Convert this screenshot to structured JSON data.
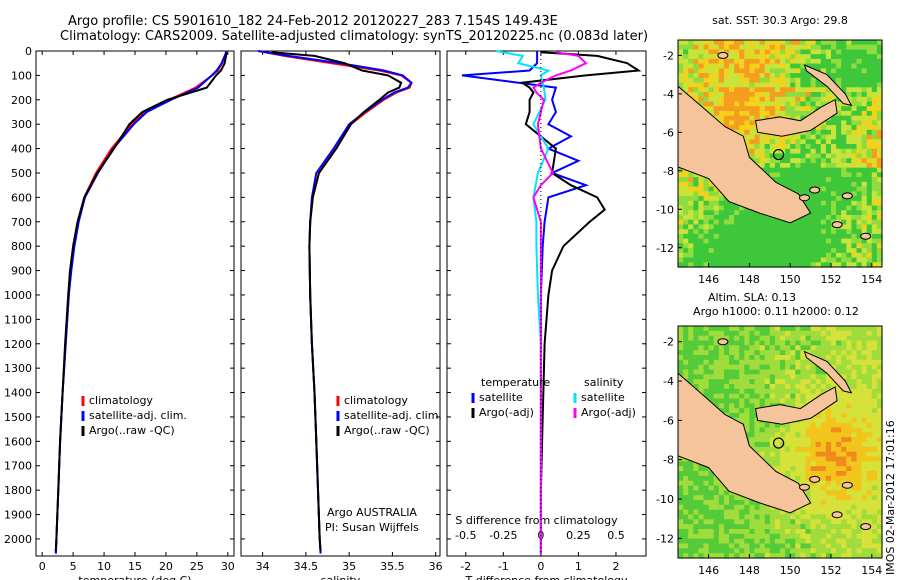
{
  "header": {
    "line1": "Argo profile: CS 5901610_182 24-Feb-2012 20120227_283 7.154S 149.43E",
    "line2": "Climatology: CARS2009. Satellite-adjusted climatology: synTS_20120225.nc (0.083d later)"
  },
  "map_top": {
    "title": "sat. SST: 30.3 Argo: 29.8",
    "x_ticks": [
      "146",
      "148",
      "150",
      "152",
      "154"
    ],
    "y_ticks": [
      "-2",
      "-4",
      "-6",
      "-8",
      "-10",
      "-12"
    ],
    "profile_marker": {
      "lon": 149.43,
      "lat": -7.154
    }
  },
  "map_bottom": {
    "title1": "Altim. SLA: 0.13",
    "title2": "Argo h1000: 0.11 h2000: 0.12",
    "x_ticks": [
      "146",
      "148",
      "150",
      "152",
      "154"
    ],
    "y_ticks": [
      "-2",
      "-4",
      "-6",
      "-8",
      "-10",
      "-12"
    ],
    "profile_marker": {
      "lon": 149.43,
      "lat": -7.154
    }
  },
  "footer": {
    "stamp": "IMOS 02-Mar-2012 17:01:16"
  },
  "colors": {
    "climatology": "#ff0000",
    "satellite": "#0000ff",
    "argo": "#000000",
    "sal_sat": "#00e5ff",
    "sal_argo": "#ff00ff",
    "land": "#f5c49b"
  },
  "chart_data": [
    {
      "type": "line",
      "name": "temperature",
      "xlabel": "temperature (deg C)",
      "ylabel": "",
      "xlim": [
        -1,
        31
      ],
      "ylim": [
        2070,
        0
      ],
      "x_ticks": [
        "0",
        "5",
        "10",
        "15",
        "20",
        "25",
        "30"
      ],
      "y_ticks": [
        "0",
        "100",
        "200",
        "300",
        "400",
        "500",
        "600",
        "700",
        "800",
        "900",
        "1000",
        "1100",
        "1200",
        "1300",
        "1400",
        "1500",
        "1600",
        "1700",
        "1800",
        "1900",
        "2000"
      ],
      "legend": [
        "climatology",
        "satellite-adj. clim.",
        "Argo(..raw -QC)"
      ],
      "series": [
        {
          "name": "climatology",
          "depth": [
            0,
            20,
            50,
            80,
            100,
            150,
            200,
            250,
            300,
            400,
            500,
            600,
            700,
            800,
            900,
            1000,
            1200,
            1400,
            1600,
            1800,
            2000,
            2060
          ],
          "values": [
            29.9,
            29.6,
            29.1,
            28.4,
            27.5,
            24.8,
            20.5,
            16.5,
            14.5,
            11.2,
            8.7,
            6.8,
            5.8,
            5.1,
            4.6,
            4.3,
            3.8,
            3.3,
            2.9,
            2.6,
            2.3,
            2.2
          ]
        },
        {
          "name": "satellite-adj. clim.",
          "depth": [
            0,
            20,
            50,
            80,
            100,
            150,
            200,
            250,
            300,
            400,
            500,
            600,
            700,
            800,
            900,
            1000,
            1200,
            1400,
            1600,
            1800,
            2000,
            2060
          ],
          "values": [
            29.8,
            29.5,
            29.0,
            28.2,
            27.4,
            25.2,
            20.8,
            16.9,
            14.8,
            11.5,
            9.0,
            6.9,
            5.9,
            5.2,
            4.7,
            4.3,
            3.8,
            3.3,
            2.9,
            2.6,
            2.3,
            2.2
          ]
        },
        {
          "name": "Argo(..raw -QC)",
          "depth": [
            5,
            20,
            50,
            80,
            100,
            150,
            200,
            250,
            300,
            400,
            500,
            600,
            700,
            800,
            900,
            1000,
            1200,
            1400,
            1600,
            1800,
            2000,
            2050
          ],
          "values": [
            29.8,
            29.7,
            29.5,
            28.9,
            28.1,
            26.6,
            20.2,
            16.2,
            14.1,
            11.6,
            8.9,
            6.8,
            5.7,
            5.0,
            4.5,
            4.2,
            3.7,
            3.3,
            2.9,
            2.6,
            2.3,
            2.2
          ]
        }
      ]
    },
    {
      "type": "line",
      "name": "salinity",
      "xlabel": "salinity",
      "xlim": [
        33.75,
        36.05
      ],
      "ylim": [
        2070,
        0
      ],
      "x_ticks": [
        "34",
        "34.5",
        "35",
        "35.5",
        "36"
      ],
      "legend": [
        "climatology",
        "satellite-adj. clim.",
        "Argo(..raw -QC)"
      ],
      "annotation": [
        "Argo AUSTRALIA",
        "PI: Susan Wijffels"
      ],
      "series": [
        {
          "name": "climatology",
          "depth": [
            0,
            20,
            50,
            80,
            100,
            130,
            150,
            170,
            200,
            250,
            300,
            400,
            500,
            600,
            700,
            800,
            1000,
            1200,
            1400,
            1600,
            1800,
            2000,
            2060
          ],
          "values": [
            33.95,
            34.25,
            34.8,
            35.35,
            35.6,
            35.72,
            35.7,
            35.55,
            35.4,
            35.2,
            35.02,
            34.85,
            34.65,
            34.58,
            34.55,
            34.54,
            34.55,
            34.57,
            34.6,
            34.62,
            34.64,
            34.66,
            34.67
          ]
        },
        {
          "name": "satellite-adj. clim.",
          "depth": [
            0,
            20,
            50,
            80,
            100,
            130,
            150,
            170,
            200,
            250,
            300,
            400,
            500,
            600,
            700,
            800,
            1000,
            1200,
            1400,
            1600,
            1800,
            2000,
            2060
          ],
          "values": [
            33.95,
            34.3,
            34.9,
            35.4,
            35.62,
            35.72,
            35.68,
            35.52,
            35.38,
            35.18,
            35.0,
            34.82,
            34.62,
            34.57,
            34.55,
            34.54,
            34.55,
            34.57,
            34.6,
            34.62,
            34.64,
            34.66,
            34.67
          ]
        },
        {
          "name": "Argo(..raw -QC)",
          "depth": [
            5,
            20,
            50,
            80,
            100,
            130,
            150,
            170,
            200,
            250,
            300,
            400,
            500,
            600,
            700,
            800,
            1000,
            1200,
            1400,
            1600,
            1800,
            2000,
            2050
          ],
          "values": [
            34.1,
            34.6,
            34.95,
            35.15,
            35.45,
            35.6,
            35.58,
            35.45,
            35.35,
            35.17,
            35.02,
            34.85,
            34.65,
            34.58,
            34.55,
            34.54,
            34.55,
            34.57,
            34.6,
            34.62,
            34.64,
            34.66,
            34.67
          ]
        }
      ]
    },
    {
      "type": "line",
      "name": "differences",
      "xlabel_bottom": "T difference from climatology",
      "xlabel_top": "S difference from climatology",
      "xlim": [
        -2.5,
        2.8
      ],
      "ylim": [
        2070,
        0
      ],
      "x_ticks": [
        "-2",
        "-1",
        "0",
        "1",
        "2"
      ],
      "x_ticks_top": [
        "-0.5",
        "-0.25",
        "0",
        "0.25",
        "0.5"
      ],
      "legend_temperature": [
        "temperature",
        "satellite",
        "Argo(-adj)"
      ],
      "legend_salinity": [
        "salinity",
        "satellite",
        "Argo(-adj)"
      ],
      "series": [
        {
          "name": "temperature satellite",
          "depth": [
            0,
            50,
            80,
            100,
            150,
            200,
            250,
            300,
            350,
            400,
            450,
            500,
            550,
            600,
            700,
            800,
            1000,
            1200,
            1500,
            1800,
            2000,
            2060
          ],
          "values": [
            -0.1,
            -0.1,
            -0.3,
            -2.1,
            0.4,
            0.3,
            0.4,
            0.2,
            0.8,
            0.2,
            1.0,
            0.3,
            1.2,
            0.2,
            0.1,
            0.05,
            0.0,
            0.0,
            0.0,
            0.0,
            0.0,
            0.0
          ]
        },
        {
          "name": "temperature Argo(-adj)",
          "depth": [
            5,
            20,
            50,
            80,
            100,
            130,
            150,
            170,
            200,
            250,
            300,
            400,
            500,
            550,
            600,
            650,
            700,
            800,
            900,
            1000,
            1200,
            1500,
            1800,
            2000,
            2060
          ],
          "values": [
            0.0,
            1.5,
            2.3,
            2.6,
            1.2,
            -0.5,
            -0.3,
            -0.2,
            -0.3,
            -0.3,
            -0.4,
            0.4,
            0.3,
            0.8,
            1.5,
            1.7,
            1.3,
            0.6,
            0.3,
            0.2,
            0.1,
            0.05,
            0.0,
            0.0,
            0.0
          ]
        },
        {
          "name": "salinity satellite",
          "depth": [
            0,
            20,
            50,
            80,
            100,
            150,
            200,
            300,
            400,
            500,
            600,
            700,
            800,
            1000,
            1200,
            1500,
            1800,
            2000,
            2060
          ],
          "values": [
            -0.3,
            -0.12,
            -0.15,
            0.05,
            0.0,
            0.02,
            0.03,
            -0.05,
            0.05,
            -0.02,
            -0.05,
            -0.03,
            -0.03,
            -0.02,
            0.0,
            0.0,
            0.0,
            0.0,
            0.0
          ]
        },
        {
          "name": "salinity Argo(-adj)",
          "depth": [
            5,
            20,
            50,
            80,
            100,
            130,
            150,
            170,
            200,
            250,
            300,
            400,
            500,
            550,
            600,
            700,
            800,
            1000,
            1200,
            1500,
            1800,
            2000,
            2060
          ],
          "values": [
            0.1,
            0.25,
            0.3,
            0.2,
            0.1,
            0.0,
            -0.05,
            -0.03,
            0.02,
            0.0,
            -0.02,
            0.0,
            0.08,
            0.0,
            -0.05,
            0.0,
            0.0,
            0.0,
            0.0,
            0.0,
            0.0,
            0.0,
            0.0
          ]
        }
      ]
    }
  ]
}
